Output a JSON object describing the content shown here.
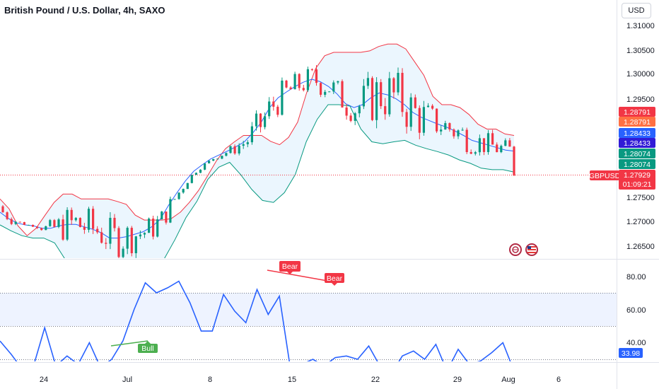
{
  "header": {
    "title": "British Pound / U.S. Dollar, 4h, SAXO",
    "currency_button": "USD"
  },
  "price_axis": {
    "ticks": [
      "1.31000",
      "1.30500",
      "1.30000",
      "1.29500",
      "1.27500",
      "1.27000",
      "1.26500"
    ]
  },
  "price_tags": [
    {
      "label": "1.28791",
      "color": "#f23645"
    },
    {
      "label": "1.28791",
      "color": "#ff7043"
    },
    {
      "label": "1.28433",
      "color": "#2962ff"
    },
    {
      "label": "1.28433",
      "color": "#311bd6"
    },
    {
      "label": "1.28074",
      "color": "#089981"
    },
    {
      "label": "1.28074",
      "color": "#089981"
    }
  ],
  "last_price": {
    "symbol": "GBPUSD",
    "price": "1.27929",
    "countdown": "01:09:21",
    "color": "#f23645"
  },
  "rsi_axis": {
    "ticks": [
      "80.00",
      "60.00",
      "40.00"
    ],
    "current": "33.98"
  },
  "divergence_labels": [
    {
      "text": "Bear",
      "color": "#f23645"
    },
    {
      "text": "Bear",
      "color": "#f23645"
    },
    {
      "text": "Bull",
      "color": "#4caf50"
    }
  ],
  "time_axis": [
    "24",
    "Jul",
    "8",
    "15",
    "22",
    "29",
    "Aug",
    "6"
  ],
  "icons": [
    "event-icon",
    "us-flag-icon"
  ],
  "chart_data": [
    {
      "type": "candlestick",
      "series": [
        {
          "name": "Bollinger upper",
          "color": "#f23645",
          "y": [
            1.2745,
            1.2725,
            1.269,
            1.267,
            1.2685,
            1.2712,
            1.2738,
            1.2755,
            1.2755,
            1.2745,
            1.2745,
            1.2745,
            1.2745,
            1.274,
            1.2734,
            1.2712,
            1.2702,
            1.2702,
            1.2702,
            1.2705,
            1.2718,
            1.2738,
            1.2762,
            1.2792,
            1.2823,
            1.2848,
            1.2862,
            1.2875,
            1.2875,
            1.2875,
            1.2863,
            1.2856,
            1.2871,
            1.2902,
            1.2962,
            1.3012,
            1.3038,
            1.3045,
            1.3045,
            1.3045,
            1.3045,
            1.3048,
            1.3057,
            1.3062,
            1.3062,
            1.3052,
            1.3025,
            1.2998,
            1.2955,
            1.2938,
            1.2938,
            1.2932,
            1.2918,
            1.2898,
            1.2888,
            1.2888,
            1.2878,
            1.2875
          ]
        },
        {
          "name": "Bollinger basis",
          "color": "#2962ff",
          "y": [
            1.2718,
            1.2705,
            1.2696,
            1.2692,
            1.269,
            1.2685,
            1.2685,
            1.269,
            1.2693,
            1.2693,
            1.2688,
            1.2683,
            1.2676,
            1.2665,
            1.2665,
            1.2668,
            1.2673,
            1.2678,
            1.2688,
            1.2703,
            1.2732,
            1.2758,
            1.2782,
            1.2802,
            1.2815,
            1.2827,
            1.2835,
            1.2843,
            1.2852,
            1.2862,
            1.288,
            1.2902,
            1.2932,
            1.2952,
            1.2964,
            1.2975,
            1.2984,
            1.299,
            1.2985,
            1.2975,
            1.296,
            1.294,
            1.2932,
            1.2938,
            1.2952,
            1.2962,
            1.2958,
            1.295,
            1.2938,
            1.2922,
            1.2912,
            1.2905,
            1.2898,
            1.2892,
            1.2884,
            1.2875,
            1.2865,
            1.286,
            1.2855,
            1.285,
            1.2845,
            1.2843
          ]
        },
        {
          "name": "Bollinger lower",
          "color": "#089981",
          "y": [
            1.2692,
            1.268,
            1.267,
            1.2665,
            1.2665,
            1.2655,
            1.262,
            1.2605,
            1.2605,
            1.2605,
            1.2605,
            1.2605,
            1.2605,
            1.2605,
            1.261,
            1.2622,
            1.2662,
            1.2707,
            1.274,
            1.2785,
            1.281,
            1.282,
            1.2795,
            1.2765,
            1.2742,
            1.2738,
            1.2758,
            1.2795,
            1.2862,
            1.2908,
            1.2938,
            1.2938,
            1.2935,
            1.2888,
            1.2862,
            1.2858,
            1.2862,
            1.2865,
            1.2855,
            1.2848,
            1.2842,
            1.2835,
            1.2825,
            1.2818,
            1.2808,
            1.2805,
            1.2805,
            1.28
          ]
        },
        {
          "name": "RSI",
          "color": "#2962ff",
          "y": [
            51,
            43,
            34,
            36,
            59,
            36,
            42,
            37,
            50,
            35,
            40,
            51,
            70,
            86,
            80,
            83,
            87,
            74,
            57,
            57,
            79,
            69,
            62,
            82,
            67,
            78,
            34,
            37,
            40,
            36,
            41,
            42,
            40,
            48,
            36,
            31,
            42,
            45,
            40,
            49,
            33,
            46,
            37,
            39,
            44,
            50,
            33
          ]
        }
      ]
    }
  ]
}
